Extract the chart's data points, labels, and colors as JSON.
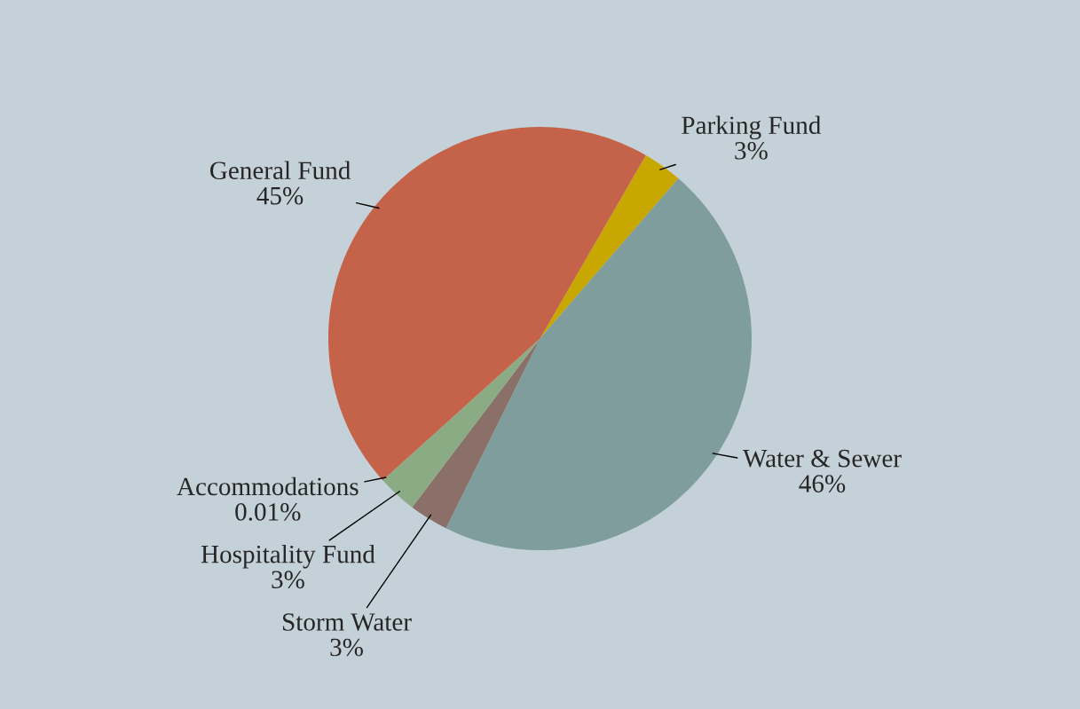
{
  "chart_data": {
    "type": "pie",
    "categories": [
      "Parking Fund",
      "Water & Sewer",
      "Storm Water",
      "Hospitality Fund",
      "Accommodations",
      "General Fund"
    ],
    "values": [
      3,
      46,
      3,
      3,
      0.01,
      45
    ],
    "value_labels": [
      "3%",
      "46%",
      "3%",
      "3%",
      "0.01%",
      "45%"
    ],
    "colors": [
      "#c8a800",
      "#7e9d9c",
      "#8a7068",
      "#8aab84",
      "#e0884a",
      "#c4634a"
    ]
  }
}
